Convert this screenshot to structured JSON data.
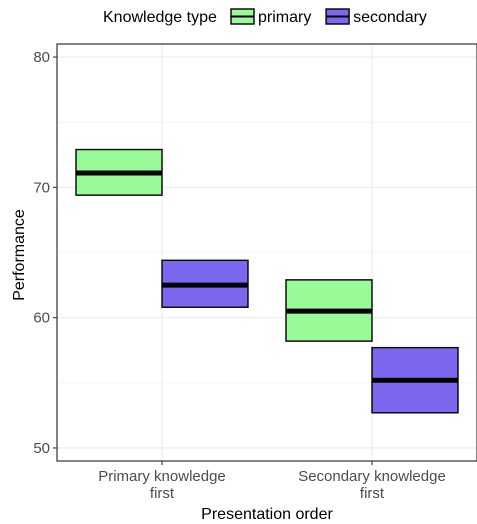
{
  "chart_data": {
    "type": "crossbar",
    "xlabel": "Presentation order",
    "ylabel": "Performance",
    "ylim": [
      49,
      81
    ],
    "yticks": [
      50,
      60,
      70,
      80
    ],
    "categories": [
      [
        "Primary knowledge",
        "first"
      ],
      [
        "Secondary knowledge",
        "first"
      ]
    ],
    "legend": {
      "title": "Knowledge type",
      "position": "top"
    },
    "grid": true,
    "series": [
      {
        "name": "primary",
        "color": "#98fb98",
        "points": [
          {
            "category": 0,
            "mean": 71.1,
            "lower": 69.4,
            "upper": 72.9
          },
          {
            "category": 1,
            "mean": 60.5,
            "lower": 58.2,
            "upper": 62.9
          }
        ]
      },
      {
        "name": "secondary",
        "color": "#7b68ee",
        "points": [
          {
            "category": 0,
            "mean": 62.5,
            "lower": 60.8,
            "upper": 64.4
          },
          {
            "category": 1,
            "mean": 55.2,
            "lower": 52.7,
            "upper": 57.7
          }
        ]
      }
    ]
  }
}
